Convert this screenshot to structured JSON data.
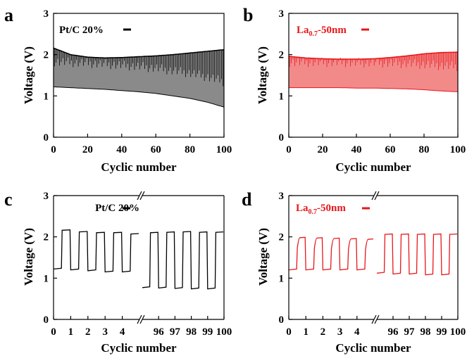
{
  "colors": {
    "black_series": "#000000",
    "red_series": "#e8161a",
    "black_fill": "#8a8a8a",
    "red_fill": "#f28a8a"
  },
  "chart_data": [
    {
      "panel": "a",
      "type": "line",
      "xlabel": "Cyclic number",
      "ylabel": "Voltage (V)",
      "xlim": [
        0,
        100
      ],
      "ylim": [
        0,
        3
      ],
      "xticks": [
        "0",
        "20",
        "40",
        "60",
        "80",
        "100"
      ],
      "yticks": [
        "0",
        "1",
        "2",
        "3"
      ],
      "legend": "Pt/C 20%",
      "legend_placement": "top-left",
      "series": [
        {
          "name": "Pt/C 20%",
          "color": "#000000",
          "charge_upper_envelope": {
            "x": [
              0,
              10,
              20,
              30,
              40,
              50,
              60,
              70,
              80,
              90,
              100
            ],
            "y": [
              2.16,
              2.0,
              1.94,
              1.92,
              1.93,
              1.95,
              1.97,
              2.0,
              2.04,
              2.08,
              2.12
            ]
          },
          "discharge_lower_envelope": {
            "x": [
              0,
              10,
              20,
              30,
              40,
              50,
              60,
              70,
              80,
              90,
              100
            ],
            "y": [
              1.22,
              1.2,
              1.18,
              1.16,
              1.13,
              1.1,
              1.06,
              1.0,
              0.94,
              0.85,
              0.73
            ]
          }
        }
      ]
    },
    {
      "panel": "b",
      "type": "line",
      "xlabel": "Cyclic number",
      "ylabel": "Voltage (V)",
      "xlim": [
        0,
        100
      ],
      "ylim": [
        0,
        3
      ],
      "xticks": [
        "0",
        "20",
        "40",
        "60",
        "80",
        "100"
      ],
      "yticks": [
        "0",
        "1",
        "2",
        "3"
      ],
      "legend_parts": [
        "La",
        "0.7",
        "-50nm"
      ],
      "legend_placement": "top-left",
      "series": [
        {
          "name": "La0.7-50nm",
          "color": "#e8161a",
          "charge_upper_envelope": {
            "x": [
              0,
              10,
              20,
              30,
              40,
              50,
              60,
              70,
              80,
              90,
              100
            ],
            "y": [
              1.96,
              1.92,
              1.9,
              1.89,
              1.89,
              1.9,
              1.93,
              1.97,
              2.02,
              2.05,
              2.06
            ]
          },
          "discharge_lower_envelope": {
            "x": [
              0,
              10,
              20,
              30,
              40,
              50,
              60,
              70,
              80,
              90,
              100
            ],
            "y": [
              1.2,
              1.2,
              1.2,
              1.2,
              1.19,
              1.19,
              1.18,
              1.17,
              1.15,
              1.12,
              1.1
            ]
          }
        }
      ]
    },
    {
      "panel": "c",
      "type": "line",
      "xlabel": "Cyclic number",
      "ylabel": "Voltage (V)",
      "ylim": [
        0,
        3
      ],
      "broken_x_axis": true,
      "xticks_left": [
        "0",
        "1",
        "2",
        "3",
        "4"
      ],
      "xticks_right": [
        "96",
        "97",
        "98",
        "99",
        "100"
      ],
      "yticks": [
        "0",
        "1",
        "2",
        "3"
      ],
      "legend": "Pt/C 20%",
      "legend_placement": "top-right",
      "series": [
        {
          "name": "Pt/C 20%",
          "color": "#000000",
          "cycles_0_to_5": {
            "charge": [
              2.16,
              2.12,
              2.1,
              2.1,
              2.07
            ],
            "discharge": [
              1.22,
              1.2,
              1.18,
              1.15,
              1.15
            ]
          },
          "cycles_95_to_100": {
            "charge": [
              2.1,
              2.11,
              2.12,
              2.11,
              2.11
            ],
            "discharge": [
              0.77,
              0.76,
              0.75,
              0.74,
              0.74
            ]
          }
        }
      ]
    },
    {
      "panel": "d",
      "type": "line",
      "xlabel": "Cyclic number",
      "ylabel": "Voltage (V)",
      "ylim": [
        0,
        3
      ],
      "broken_x_axis": true,
      "xticks_left": [
        "0",
        "1",
        "2",
        "3",
        "4"
      ],
      "xticks_right": [
        "96",
        "97",
        "98",
        "99",
        "100"
      ],
      "yticks": [
        "0",
        "1",
        "2",
        "3"
      ],
      "legend_parts": [
        "La",
        "0.7",
        "-50nm"
      ],
      "legend_placement": "top-right",
      "series": [
        {
          "name": "La0.7-50nm",
          "color": "#e8161a",
          "cycles_0_to_5": {
            "charge": [
              1.98,
              1.97,
              1.96,
              1.95,
              1.94
            ],
            "discharge": [
              1.2,
              1.2,
              1.2,
              1.2,
              1.2
            ]
          },
          "cycles_95_to_100": {
            "charge": [
              2.06,
              2.06,
              2.06,
              2.06,
              2.06
            ],
            "discharge": [
              1.12,
              1.1,
              1.1,
              1.08,
              1.08
            ]
          }
        }
      ]
    }
  ]
}
